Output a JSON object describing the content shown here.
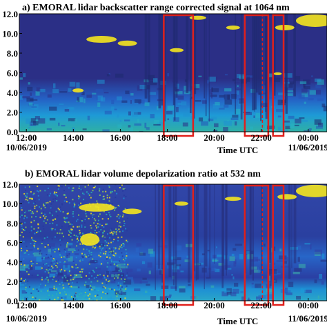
{
  "chart_data": [
    {
      "type": "heatmap",
      "title": "a) EMORAL lidar backscatter range corrected signal at 1064 nm",
      "x_label": "Time UTC",
      "xlim": [
        11.7,
        24.8
      ],
      "xticks": [
        {
          "value": 12,
          "label": "12:00"
        },
        {
          "value": 14,
          "label": "14:00"
        },
        {
          "value": 16,
          "label": "16:00"
        },
        {
          "value": 18,
          "label": "18:00"
        },
        {
          "value": 20,
          "label": "20:00"
        },
        {
          "value": 22,
          "label": "22:00"
        },
        {
          "value": 24,
          "label": "00:00"
        }
      ],
      "xtick_dates": [
        {
          "value": 12,
          "label": "10/06/2019"
        },
        {
          "value": 24,
          "label": "11/06/2019"
        }
      ],
      "ylim": [
        0,
        12
      ],
      "yticks": [
        {
          "value": 0,
          "label": "0.0"
        },
        {
          "value": 2,
          "label": "2.0"
        },
        {
          "value": 4,
          "label": "4.0"
        },
        {
          "value": 6,
          "label": "6.0"
        },
        {
          "value": 8,
          "label": "8.0"
        },
        {
          "value": 10,
          "label": "10.0"
        },
        {
          "value": 12,
          "label": "12.0"
        }
      ],
      "highlight_color": "#e0201b",
      "highlights": [
        [
          17.85,
          19.1
        ],
        [
          21.3,
          22.3
        ],
        [
          22.5,
          22.95
        ]
      ],
      "dashed_lines": [
        22.05,
        22.5
      ]
    },
    {
      "type": "heatmap",
      "title": "b) EMORAL lidar volume depolarization ratio at 532 nm",
      "x_label": "Time UTC",
      "xlim": [
        11.7,
        24.8
      ],
      "xticks": [
        {
          "value": 12,
          "label": "12:00"
        },
        {
          "value": 14,
          "label": "14:00"
        },
        {
          "value": 16,
          "label": "16:00"
        },
        {
          "value": 18,
          "label": "18:00"
        },
        {
          "value": 20,
          "label": "20:00"
        },
        {
          "value": 22,
          "label": "22:00"
        },
        {
          "value": 24,
          "label": "00:00"
        }
      ],
      "xtick_dates": [
        {
          "value": 12,
          "label": "10/06/2019"
        },
        {
          "value": 24,
          "label": "11/06/2019"
        }
      ],
      "ylim": [
        0,
        12
      ],
      "yticks": [
        {
          "value": 0,
          "label": "0.0"
        },
        {
          "value": 2,
          "label": "2.0"
        },
        {
          "value": 4,
          "label": "4.0"
        },
        {
          "value": 6,
          "label": "6.0"
        },
        {
          "value": 8,
          "label": "8.0"
        },
        {
          "value": 10,
          "label": "10.0"
        },
        {
          "value": 12,
          "label": "12.0"
        }
      ],
      "highlight_color": "#e0201b",
      "highlights": [
        [
          17.85,
          19.1
        ],
        [
          21.3,
          22.3
        ],
        [
          22.5,
          22.95
        ]
      ],
      "dashed_lines": [
        22.05,
        22.5
      ]
    }
  ]
}
